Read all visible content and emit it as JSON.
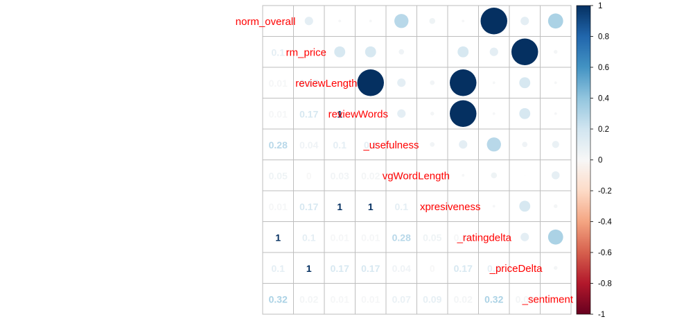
{
  "chart_data": {
    "type": "heatmap",
    "variables": [
      "norm_overall",
      "norm_price",
      "reviewLength",
      "reviewWords",
      "usefulness",
      "avgWordLength",
      "expresiveness",
      "ratingdelta",
      "priceDelta",
      "sentiment"
    ],
    "diagonal_labels": [
      "norm_overall",
      "rm_price",
      "reviewLength",
      "reviewWords",
      "_usefulness",
      "vgWordLength",
      "xpresiveness",
      "_ratingdelta",
      "_priceDelta",
      "_sentiment"
    ],
    "matrix": [
      [
        1,
        0.1,
        0.01,
        0.01,
        0.28,
        0.05,
        0.01,
        1,
        0.1,
        0.32
      ],
      [
        0.1,
        1,
        0.17,
        0.17,
        0.04,
        0,
        0.17,
        0.1,
        1,
        0.02
      ],
      [
        0.01,
        0.17,
        1,
        1,
        0.1,
        0.03,
        1,
        0.01,
        0.17,
        0.01
      ],
      [
        0.01,
        0.17,
        1,
        1,
        0.1,
        0.02,
        1,
        0.01,
        0.17,
        0.01
      ],
      [
        0.28,
        0.04,
        0.1,
        0.1,
        1,
        0.03,
        0.1,
        0.28,
        0.04,
        0.07
      ],
      [
        0.05,
        0,
        0.03,
        0.02,
        0.03,
        1,
        0.01,
        0.05,
        0,
        0.09
      ],
      [
        0.01,
        0.17,
        1,
        1,
        0.1,
        0.01,
        1,
        0.01,
        0.17,
        0.02
      ],
      [
        1,
        0.1,
        0.01,
        0.01,
        0.28,
        0.05,
        0.01,
        1,
        0.1,
        0.32
      ],
      [
        0.1,
        1,
        0.17,
        0.17,
        0.04,
        0,
        0.17,
        0.1,
        1,
        0.02
      ],
      [
        0.32,
        0.02,
        0.01,
        0.01,
        0.07,
        0.09,
        0.02,
        0.32,
        0.02,
        1
      ]
    ],
    "upper": "circle",
    "lower": "number",
    "colorbar": {
      "range": [
        -1,
        1
      ],
      "ticks": [
        "1",
        "0.8",
        "0.6",
        "0.4",
        "0.2",
        "0",
        "-0.2",
        "-0.4",
        "-0.6",
        "-0.8",
        "-1"
      ]
    },
    "label_color": "#ff0000"
  }
}
